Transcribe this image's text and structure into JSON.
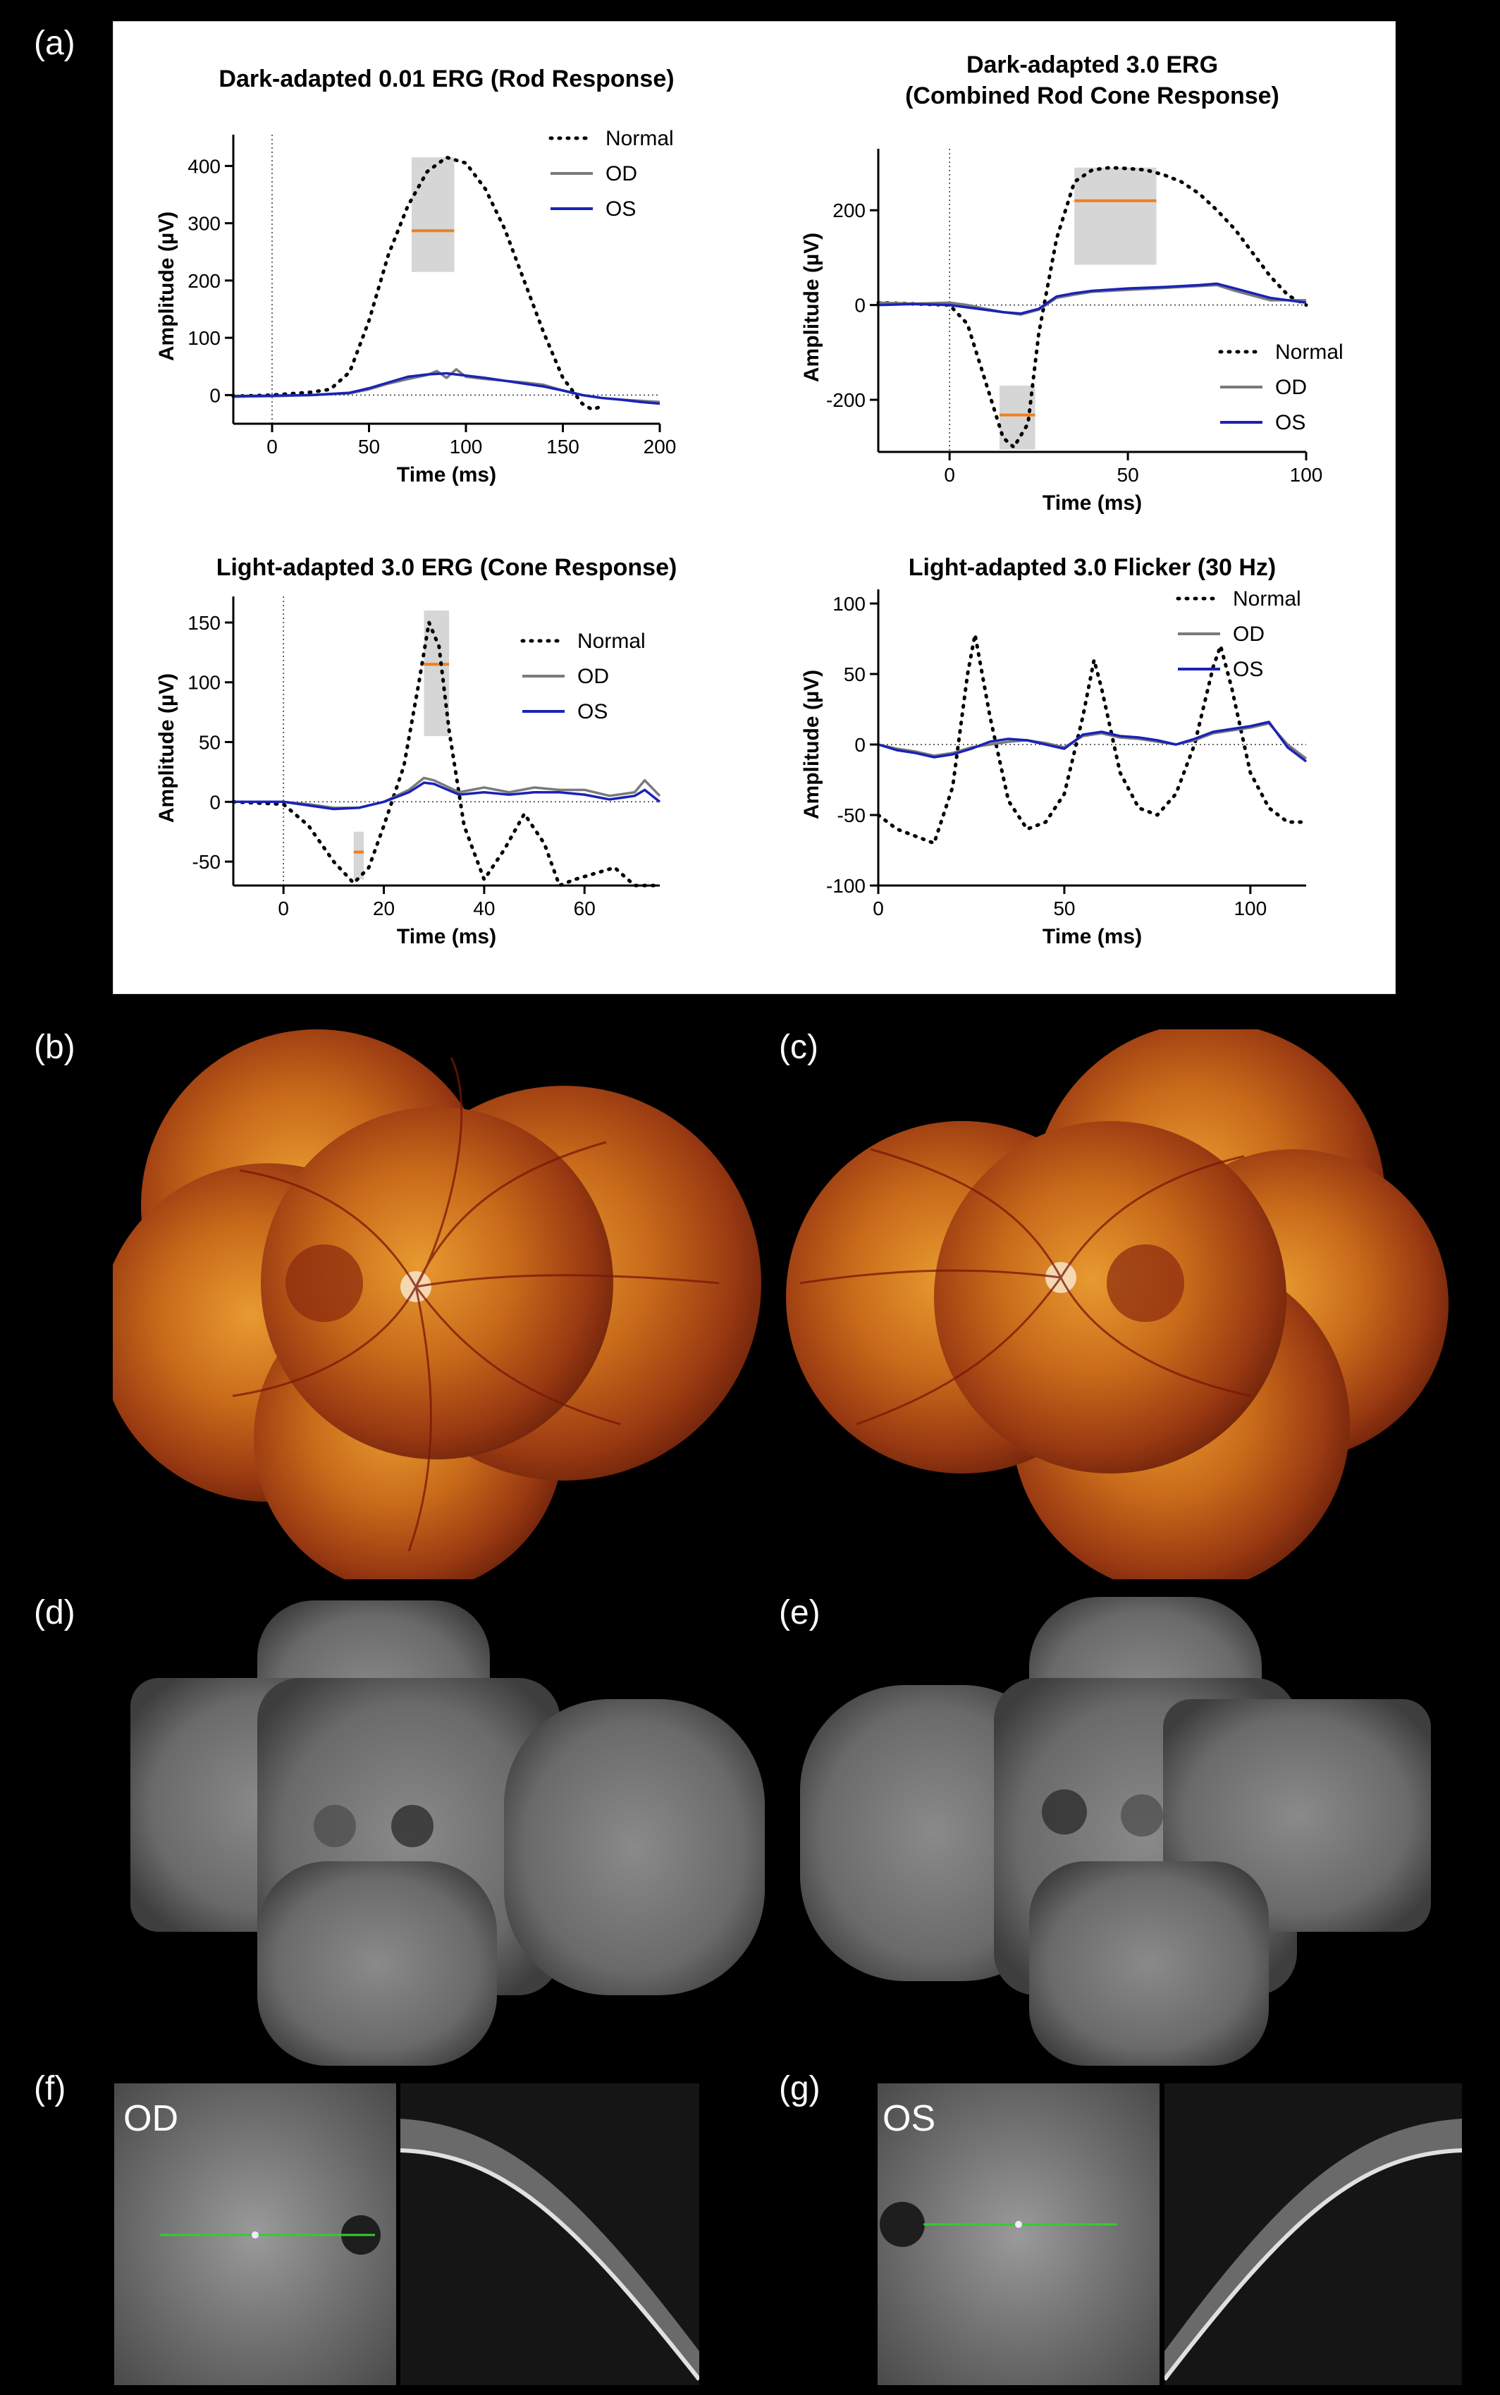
{
  "labels": {
    "a": "(a)",
    "b": "(b)",
    "c": "(c)",
    "d": "(d)",
    "e": "(e)",
    "f": "(f)",
    "g": "(g)"
  },
  "oct": {
    "od_label": "OD",
    "os_label": "OS"
  },
  "colors": {
    "normal": "#000000",
    "od": "#7a7a7a",
    "os": "#1a22b8",
    "orange": "#f07f20",
    "gray_box": "#cfcfcf"
  },
  "chart_data": [
    {
      "type": "line",
      "title": "Dark-adapted 0.01 ERG (Rod Response)",
      "xlabel": "Time (ms)",
      "ylabel": "Amplitude (µV)",
      "xlim": [
        -20,
        200
      ],
      "ylim": [
        -50,
        430
      ],
      "xticks": [
        0,
        50,
        100,
        150,
        200
      ],
      "yticks": [
        0,
        100,
        200,
        300,
        400
      ],
      "legend": [
        "Normal",
        "OD",
        "OS"
      ],
      "legend_position": "top-right",
      "normal_box": {
        "x": [
          72,
          94
        ],
        "y": [
          215,
          415
        ],
        "median": 287
      },
      "series": [
        {
          "name": "Normal",
          "style": "dotted",
          "x": [
            -20,
            0,
            20,
            30,
            40,
            50,
            60,
            70,
            80,
            90,
            100,
            110,
            120,
            130,
            140,
            150,
            160,
            165,
            170
          ],
          "y": [
            -2,
            0,
            5,
            10,
            40,
            130,
            245,
            330,
            390,
            415,
            405,
            360,
            290,
            200,
            110,
            30,
            -15,
            -25,
            -20
          ]
        },
        {
          "name": "OD",
          "x": [
            -20,
            0,
            20,
            40,
            50,
            60,
            70,
            80,
            85,
            90,
            95,
            100,
            110,
            120,
            130,
            140,
            150,
            160,
            170,
            180,
            190,
            200
          ],
          "y": [
            -3,
            -2,
            0,
            3,
            10,
            20,
            28,
            35,
            42,
            30,
            45,
            32,
            28,
            25,
            22,
            18,
            8,
            0,
            -5,
            -8,
            -10,
            -12
          ]
        },
        {
          "name": "OS",
          "x": [
            -20,
            0,
            20,
            40,
            50,
            60,
            70,
            80,
            90,
            100,
            110,
            120,
            130,
            140,
            150,
            160,
            170,
            180,
            190,
            200
          ],
          "y": [
            -2,
            -1,
            0,
            4,
            12,
            22,
            32,
            36,
            38,
            34,
            30,
            25,
            20,
            15,
            8,
            0,
            -5,
            -8,
            -12,
            -15
          ]
        }
      ]
    },
    {
      "type": "line",
      "title": "Dark-adapted 3.0 ERG",
      "subtitle": "(Combined Rod Cone Response)",
      "xlabel": "Time (ms)",
      "ylabel": "Amplitude (µV)",
      "xlim": [
        -20,
        100
      ],
      "ylim": [
        -310,
        300
      ],
      "xticks": [
        0,
        50,
        100
      ],
      "yticks": [
        -200,
        0,
        200
      ],
      "legend": [
        "Normal",
        "OD",
        "OS"
      ],
      "legend_position": "bottom-right",
      "normal_box": {
        "x": [
          35,
          58
        ],
        "y": [
          85,
          290
        ],
        "median": 220
      },
      "normal_box_neg": {
        "x": [
          14,
          24
        ],
        "y": [
          -305,
          -170
        ],
        "median": -232
      },
      "series": [
        {
          "name": "Normal",
          "style": "dotted",
          "x": [
            -20,
            0,
            5,
            10,
            15,
            18,
            22,
            25,
            30,
            35,
            40,
            45,
            50,
            55,
            60,
            65,
            70,
            75,
            80,
            85,
            90,
            95,
            100
          ],
          "y": [
            5,
            0,
            -40,
            -160,
            -280,
            -300,
            -250,
            -60,
            140,
            260,
            285,
            290,
            288,
            285,
            275,
            260,
            235,
            200,
            160,
            110,
            60,
            20,
            0
          ],
          "_": ""
        },
        {
          "name": "OD",
          "x": [
            -20,
            -10,
            0,
            5,
            10,
            15,
            20,
            25,
            30,
            35,
            40,
            50,
            60,
            70,
            75,
            80,
            90,
            100
          ],
          "y": [
            5,
            3,
            5,
            0,
            -8,
            -15,
            -20,
            -10,
            15,
            22,
            28,
            32,
            36,
            40,
            42,
            30,
            10,
            10
          ]
        },
        {
          "name": "OS",
          "x": [
            -20,
            -10,
            0,
            5,
            10,
            15,
            20,
            25,
            30,
            35,
            40,
            50,
            60,
            70,
            75,
            80,
            90,
            100
          ],
          "y": [
            0,
            2,
            0,
            -5,
            -10,
            -15,
            -18,
            -8,
            18,
            25,
            30,
            35,
            38,
            42,
            45,
            35,
            15,
            5
          ]
        }
      ]
    },
    {
      "type": "line",
      "title": "Light-adapted 3.0 ERG (Cone Response)",
      "xlabel": "Time (ms)",
      "ylabel": "Amplitude (µV)",
      "xlim": [
        -10,
        75
      ],
      "ylim": [
        -70,
        160
      ],
      "xticks": [
        0,
        20,
        40,
        60
      ],
      "yticks": [
        -50,
        0,
        50,
        100,
        150
      ],
      "legend": [
        "Normal",
        "OD",
        "OS"
      ],
      "legend_position": "top-right",
      "normal_box": {
        "x": [
          28,
          33
        ],
        "y": [
          55,
          160
        ],
        "median": 115
      },
      "normal_box_neg": {
        "x": [
          14,
          16
        ],
        "y": [
          -65,
          -25
        ],
        "median": -42
      },
      "series": [
        {
          "name": "Normal",
          "style": "dotted",
          "x": [
            -10,
            0,
            5,
            10,
            14,
            17,
            20,
            24,
            27,
            29,
            31,
            33,
            36,
            40,
            44,
            48,
            52,
            55,
            58,
            62,
            66,
            70,
            75
          ],
          "y": [
            0,
            -2,
            -20,
            -50,
            -68,
            -55,
            -20,
            30,
            100,
            150,
            130,
            60,
            -20,
            -65,
            -40,
            -10,
            -35,
            -70,
            -65,
            -60,
            -55,
            -70,
            -70
          ]
        },
        {
          "name": "OD",
          "x": [
            -10,
            0,
            5,
            10,
            15,
            20,
            25,
            28,
            30,
            35,
            40,
            45,
            50,
            55,
            60,
            65,
            70,
            72,
            75
          ],
          "y": [
            0,
            0,
            -2,
            -5,
            -5,
            0,
            10,
            20,
            18,
            8,
            12,
            8,
            12,
            10,
            10,
            5,
            8,
            18,
            5
          ]
        },
        {
          "name": "OS",
          "x": [
            -10,
            0,
            5,
            10,
            15,
            20,
            25,
            28,
            30,
            35,
            40,
            45,
            50,
            55,
            60,
            65,
            70,
            72,
            75
          ],
          "y": [
            0,
            0,
            -3,
            -6,
            -5,
            0,
            8,
            16,
            15,
            6,
            8,
            6,
            8,
            8,
            6,
            2,
            5,
            10,
            0
          ]
        }
      ]
    },
    {
      "type": "line",
      "title": "Light-adapted 3.0 Flicker (30 Hz)",
      "xlabel": "Time (ms)",
      "ylabel": "Amplitude (µV)",
      "xlim": [
        0,
        115
      ],
      "ylim": [
        -100,
        100
      ],
      "xticks": [
        0,
        50,
        100
      ],
      "yticks": [
        -100,
        -50,
        0,
        50,
        100
      ],
      "legend": [
        "Normal",
        "OD",
        "OS"
      ],
      "legend_position": "top-right",
      "series": [
        {
          "name": "Normal",
          "style": "dotted",
          "x": [
            0,
            5,
            10,
            15,
            20,
            24,
            26,
            30,
            35,
            40,
            45,
            50,
            55,
            58,
            60,
            65,
            70,
            75,
            80,
            85,
            90,
            92,
            95,
            100,
            105,
            110,
            115
          ],
          "y": [
            -50,
            -60,
            -65,
            -70,
            -30,
            50,
            78,
            20,
            -40,
            -60,
            -55,
            -35,
            20,
            60,
            40,
            -20,
            -45,
            -50,
            -35,
            0,
            55,
            70,
            40,
            -20,
            -45,
            -55,
            -55
          ]
        },
        {
          "name": "OD",
          "x": [
            0,
            5,
            10,
            15,
            20,
            25,
            30,
            35,
            40,
            45,
            50,
            55,
            60,
            65,
            70,
            75,
            80,
            85,
            90,
            95,
            100,
            105,
            110,
            115
          ],
          "y": [
            0,
            -3,
            -5,
            -8,
            -6,
            -2,
            0,
            2,
            3,
            1,
            -2,
            6,
            8,
            5,
            4,
            2,
            0,
            3,
            8,
            10,
            12,
            15,
            0,
            -10
          ]
        },
        {
          "name": "OS",
          "x": [
            0,
            5,
            10,
            15,
            20,
            25,
            30,
            35,
            40,
            45,
            50,
            55,
            60,
            65,
            70,
            75,
            80,
            85,
            90,
            95,
            100,
            105,
            110,
            115
          ],
          "y": [
            0,
            -4,
            -6,
            -9,
            -7,
            -3,
            2,
            4,
            3,
            0,
            -3,
            7,
            9,
            6,
            5,
            3,
            0,
            4,
            9,
            11,
            13,
            16,
            -2,
            -12
          ]
        }
      ]
    }
  ]
}
